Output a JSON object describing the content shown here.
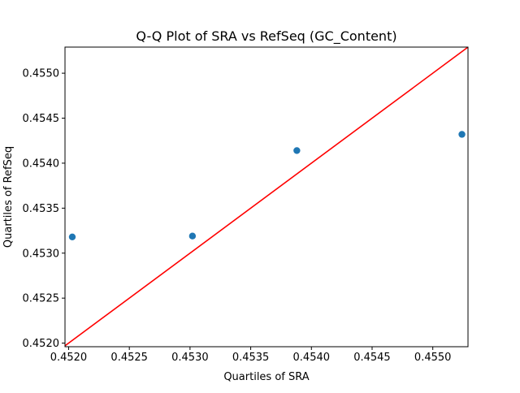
{
  "chart_data": {
    "type": "scatter",
    "title": "Q-Q Plot of SRA vs RefSeq (GC_Content)",
    "xlabel": "Quartiles of SRA",
    "ylabel": "Quartiles of RefSeq",
    "xlim": [
      0.45197,
      0.45529
    ],
    "ylim": [
      0.45196,
      0.45529
    ],
    "xticks": [
      0.452,
      0.4525,
      0.453,
      0.4535,
      0.454,
      0.4545,
      0.455
    ],
    "xtick_labels": [
      "0.4520",
      "0.4525",
      "0.4530",
      "0.4535",
      "0.4540",
      "0.4545",
      "0.4550"
    ],
    "yticks": [
      0.452,
      0.4525,
      0.453,
      0.4535,
      0.454,
      0.4545,
      0.455
    ],
    "ytick_labels": [
      "0.4520",
      "0.4525",
      "0.4530",
      "0.4535",
      "0.4540",
      "0.4545",
      "0.4550"
    ],
    "grid": false,
    "series": [
      {
        "kind": "points",
        "color": "#1f77b4",
        "x": [
          0.45203,
          0.45302,
          0.45388,
          0.45524
        ],
        "y": [
          0.45318,
          0.45319,
          0.45414,
          0.45432
        ]
      },
      {
        "kind": "reference-line",
        "color": "#ff0000",
        "x": [
          0.45197,
          0.45529
        ],
        "y": [
          0.45197,
          0.45529
        ]
      }
    ]
  }
}
